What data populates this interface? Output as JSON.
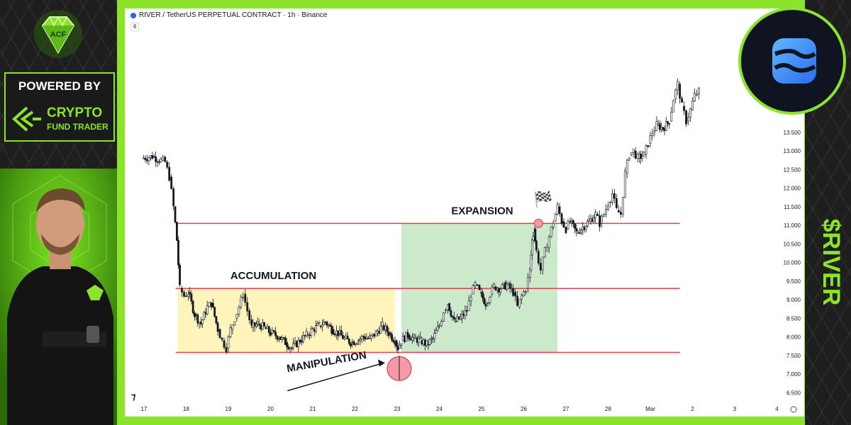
{
  "branding": {
    "powered_by": "POWERED BY",
    "brand_name": "CRYPTO",
    "brand_sub": "FUND TRADER",
    "ticker": "$RIVER",
    "accent_color": "#8be42a",
    "gem_icon": "gem-icon",
    "token_icon": "river-token-icon"
  },
  "chart_header": {
    "title": "RIVER / TetherUS PERPETUAL CONTRACT · 1h · Binance",
    "interval_badge": "6"
  },
  "chart_data": {
    "type": "candlestick",
    "x_ticks": [
      "17",
      "18",
      "19",
      "20",
      "21",
      "22",
      "23",
      "24",
      "25",
      "26",
      "27",
      "28",
      "Mar",
      "2",
      "3",
      "4"
    ],
    "y_ticks": [
      "6.500",
      "7.000",
      "7.500",
      "8.000",
      "8.500",
      "9.000",
      "9.500",
      "10.000",
      "10.500",
      "11.000",
      "11.500",
      "12.000",
      "12.500",
      "13.000",
      "13.500"
    ],
    "ylim": [
      6.2,
      14.0
    ],
    "levels": [
      {
        "name": "range_high",
        "value": 11.05,
        "color": "#e0404a"
      },
      {
        "name": "range_mid",
        "value": 9.3,
        "color": "#e0404a"
      },
      {
        "name": "range_low",
        "value": 7.58,
        "color": "#e0404a"
      }
    ],
    "zones": [
      {
        "label": "ACCUMULATION",
        "x_start": 17.8,
        "x_end": 22.95,
        "y_low": 7.58,
        "y_high": 9.3,
        "color": "#fff4b8"
      },
      {
        "label": "EXPANSION",
        "x_start": 23.1,
        "x_end": 26.8,
        "y_low": 7.58,
        "y_high": 11.05,
        "color": "#c9e8c8"
      }
    ],
    "annotations": [
      {
        "text": "MANIPULATION",
        "target_day": 23.05,
        "target_value": 7.45
      },
      {
        "text": "ACCUMULATION",
        "day": 19.3,
        "value": 9.55
      },
      {
        "text": "EXPANSION",
        "day": 24.2,
        "value": 11.3
      }
    ],
    "path_points": [
      [
        16.95,
        12.8
      ],
      [
        17.2,
        12.85
      ],
      [
        17.4,
        12.75
      ],
      [
        17.5,
        12.7
      ],
      [
        17.6,
        12.3
      ],
      [
        17.7,
        11.5
      ],
      [
        17.78,
        10.6
      ],
      [
        17.85,
        9.3
      ],
      [
        17.95,
        9.1
      ],
      [
        18.05,
        9.2
      ],
      [
        18.2,
        8.6
      ],
      [
        18.35,
        8.35
      ],
      [
        18.5,
        8.8
      ],
      [
        18.6,
        8.9
      ],
      [
        18.75,
        8.2
      ],
      [
        18.85,
        7.9
      ],
      [
        18.95,
        7.7
      ],
      [
        19.05,
        8.2
      ],
      [
        19.15,
        8.5
      ],
      [
        19.25,
        8.8
      ],
      [
        19.35,
        9.15
      ],
      [
        19.45,
        8.7
      ],
      [
        19.55,
        8.25
      ],
      [
        19.7,
        8.35
      ],
      [
        19.85,
        8.25
      ],
      [
        20.0,
        8.1
      ],
      [
        20.2,
        8.0
      ],
      [
        20.35,
        7.85
      ],
      [
        20.5,
        7.7
      ],
      [
        20.7,
        7.9
      ],
      [
        20.85,
        8.05
      ],
      [
        21.0,
        8.2
      ],
      [
        21.15,
        8.3
      ],
      [
        21.3,
        8.4
      ],
      [
        21.45,
        8.2
      ],
      [
        21.6,
        8.1
      ],
      [
        21.75,
        7.95
      ],
      [
        21.9,
        7.85
      ],
      [
        22.05,
        7.9
      ],
      [
        22.2,
        8.0
      ],
      [
        22.35,
        7.95
      ],
      [
        22.5,
        8.1
      ],
      [
        22.65,
        8.3
      ],
      [
        22.8,
        8.1
      ],
      [
        22.95,
        7.9
      ],
      [
        23.02,
        7.7
      ],
      [
        23.1,
        7.9
      ],
      [
        23.25,
        8.05
      ],
      [
        23.4,
        7.95
      ],
      [
        23.55,
        7.9
      ],
      [
        23.7,
        7.8
      ],
      [
        23.85,
        7.95
      ],
      [
        24.0,
        8.3
      ],
      [
        24.1,
        8.7
      ],
      [
        24.2,
        8.9
      ],
      [
        24.35,
        8.4
      ],
      [
        24.5,
        8.5
      ],
      [
        24.65,
        8.7
      ],
      [
        24.75,
        9.15
      ],
      [
        24.85,
        9.4
      ],
      [
        24.95,
        9.2
      ],
      [
        25.1,
        8.9
      ],
      [
        25.2,
        9.15
      ],
      [
        25.3,
        9.35
      ],
      [
        25.45,
        9.3
      ],
      [
        25.6,
        9.4
      ],
      [
        25.75,
        9.2
      ],
      [
        25.85,
        8.8
      ],
      [
        25.95,
        9.1
      ],
      [
        26.05,
        9.3
      ],
      [
        26.15,
        9.8
      ],
      [
        26.2,
        10.6
      ],
      [
        26.25,
        10.9
      ],
      [
        26.3,
        10.3
      ],
      [
        26.4,
        9.8
      ],
      [
        26.5,
        10.3
      ],
      [
        26.6,
        10.7
      ],
      [
        26.7,
        11.1
      ],
      [
        26.8,
        11.5
      ],
      [
        26.9,
        11.1
      ],
      [
        27.0,
        10.9
      ],
      [
        27.1,
        11.1
      ],
      [
        27.25,
        10.8
      ],
      [
        27.4,
        10.95
      ],
      [
        27.55,
        11.1
      ],
      [
        27.7,
        11.3
      ],
      [
        27.8,
        11.05
      ],
      [
        27.9,
        11.3
      ],
      [
        28.0,
        11.6
      ],
      [
        28.1,
        11.85
      ],
      [
        28.2,
        11.4
      ],
      [
        28.3,
        11.3
      ],
      [
        28.4,
        12.4
      ],
      [
        28.5,
        12.9
      ],
      [
        28.6,
        13.0
      ],
      [
        28.7,
        12.8
      ],
      [
        28.85,
        12.9
      ],
      [
        28.95,
        13.2
      ],
      [
        29.05,
        13.5
      ],
      [
        29.15,
        13.7
      ],
      [
        29.3,
        13.6
      ],
      [
        29.45,
        13.8
      ],
      [
        29.55,
        14.4
      ],
      [
        29.65,
        14.8
      ],
      [
        29.75,
        14.2
      ],
      [
        29.85,
        13.8
      ],
      [
        29.95,
        14.1
      ],
      [
        30.05,
        14.5
      ],
      [
        30.15,
        14.6
      ]
    ]
  }
}
